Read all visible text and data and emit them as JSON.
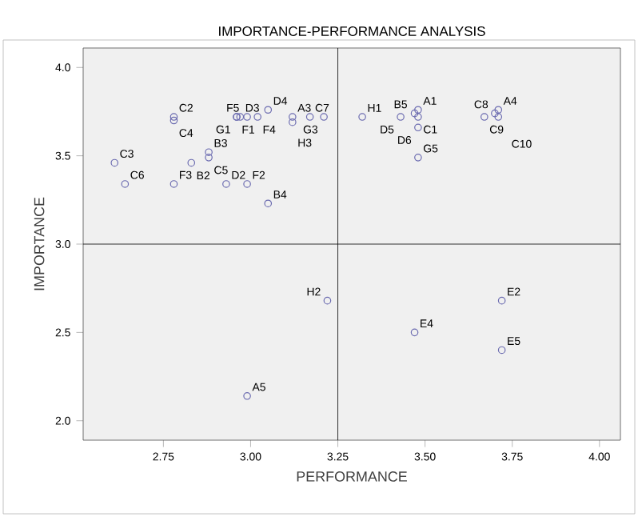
{
  "chart_data": {
    "type": "scatter",
    "title": "IMPORTANCE-PERFORMANCE ANALYSIS",
    "xlabel": "PERFORMANCE",
    "ylabel": "IMPORTANCE",
    "series": [
      {
        "color": "#6b6bb0",
        "x": [
          3.48,
          3.12,
          3.71,
          2.99,
          2.83,
          2.88,
          3.05,
          3.47,
          3.48,
          2.78,
          2.61,
          2.78,
          2.88,
          2.64,
          3.17,
          3.7,
          3.67,
          3.71,
          2.93,
          2.97,
          3.05,
          3.43,
          3.48,
          3.72,
          3.47,
          3.72,
          2.96,
          2.99,
          2.78,
          3.02,
          2.99,
          2.96,
          3.21,
          3.48,
          3.32,
          3.22,
          3.12
        ],
        "values": [
          3.76,
          3.72,
          3.76,
          2.14,
          3.46,
          3.52,
          3.23,
          3.74,
          3.72,
          3.72,
          3.46,
          3.7,
          3.49,
          3.34,
          3.72,
          3.74,
          3.72,
          3.72,
          3.34,
          3.72,
          3.76,
          3.72,
          3.66,
          2.68,
          2.5,
          2.4,
          3.72,
          3.34,
          3.34,
          3.72,
          3.72,
          3.72,
          3.72,
          3.49,
          3.72,
          2.68,
          3.69
        ]
      }
    ],
    "annotations": [
      {
        "text": "A1",
        "x": 3.48,
        "y": 3.76
      },
      {
        "text": "A3",
        "x": 3.12,
        "y": 3.72
      },
      {
        "text": "A4",
        "x": 3.71,
        "y": 3.76
      },
      {
        "text": "A5",
        "x": 2.99,
        "y": 2.14
      },
      {
        "text": "B2",
        "x": 2.83,
        "y": 3.46
      },
      {
        "text": "B3",
        "x": 2.88,
        "y": 3.52
      },
      {
        "text": "B4",
        "x": 3.05,
        "y": 3.23
      },
      {
        "text": "B5",
        "x": 3.47,
        "y": 3.74
      },
      {
        "text": "C1",
        "x": 3.48,
        "y": 3.72
      },
      {
        "text": "C2",
        "x": 2.78,
        "y": 3.72
      },
      {
        "text": "C3",
        "x": 2.61,
        "y": 3.46
      },
      {
        "text": "C4",
        "x": 2.78,
        "y": 3.7
      },
      {
        "text": "C5",
        "x": 2.88,
        "y": 3.49
      },
      {
        "text": "C6",
        "x": 2.64,
        "y": 3.34
      },
      {
        "text": "C7",
        "x": 3.17,
        "y": 3.72
      },
      {
        "text": "C8",
        "x": 3.7,
        "y": 3.74
      },
      {
        "text": "C9",
        "x": 3.67,
        "y": 3.72
      },
      {
        "text": "C10",
        "x": 3.71,
        "y": 3.72
      },
      {
        "text": "D2",
        "x": 2.93,
        "y": 3.34
      },
      {
        "text": "D3",
        "x": 2.97,
        "y": 3.72
      },
      {
        "text": "D4",
        "x": 3.05,
        "y": 3.76
      },
      {
        "text": "D5",
        "x": 3.43,
        "y": 3.72
      },
      {
        "text": "D6",
        "x": 3.48,
        "y": 3.66
      },
      {
        "text": "E2",
        "x": 3.72,
        "y": 2.68
      },
      {
        "text": "E4",
        "x": 3.47,
        "y": 2.5
      },
      {
        "text": "E5",
        "x": 3.72,
        "y": 2.4
      },
      {
        "text": "F1",
        "x": 2.96,
        "y": 3.72
      },
      {
        "text": "F2",
        "x": 2.99,
        "y": 3.34
      },
      {
        "text": "F3",
        "x": 2.78,
        "y": 3.34
      },
      {
        "text": "F4",
        "x": 3.02,
        "y": 3.72
      },
      {
        "text": "F5",
        "x": 2.99,
        "y": 3.72
      },
      {
        "text": "G1",
        "x": 2.96,
        "y": 3.72
      },
      {
        "text": "G3",
        "x": 3.21,
        "y": 3.72
      },
      {
        "text": "G5",
        "x": 3.48,
        "y": 3.49
      },
      {
        "text": "H1",
        "x": 3.32,
        "y": 3.72
      },
      {
        "text": "H2",
        "x": 3.22,
        "y": 2.68
      },
      {
        "text": "H3",
        "x": 3.12,
        "y": 3.69
      }
    ],
    "ref_lines": [
      {
        "axis": "x",
        "value": 3.25,
        "color": "#000000"
      },
      {
        "axis": "y",
        "value": 3.0,
        "color": "#000000"
      }
    ],
    "xlim": [
      2.52,
      4.06
    ],
    "ylim": [
      1.89,
      4.11
    ],
    "xticks": [
      {
        "value": 2.75,
        "label": "2.75"
      },
      {
        "value": 3.0,
        "label": "3.00"
      },
      {
        "value": 3.25,
        "label": "3.25"
      },
      {
        "value": 3.5,
        "label": "3.50"
      },
      {
        "value": 3.75,
        "label": "3.75"
      },
      {
        "value": 4.0,
        "label": "4.00"
      }
    ],
    "yticks": [
      {
        "value": 2.0,
        "label": "2.0"
      },
      {
        "value": 2.5,
        "label": "2.5"
      },
      {
        "value": 3.0,
        "label": "3.0"
      },
      {
        "value": 3.5,
        "label": "3.5"
      },
      {
        "value": 4.0,
        "label": "4.0"
      }
    ],
    "marker": "circle",
    "grid": false
  }
}
